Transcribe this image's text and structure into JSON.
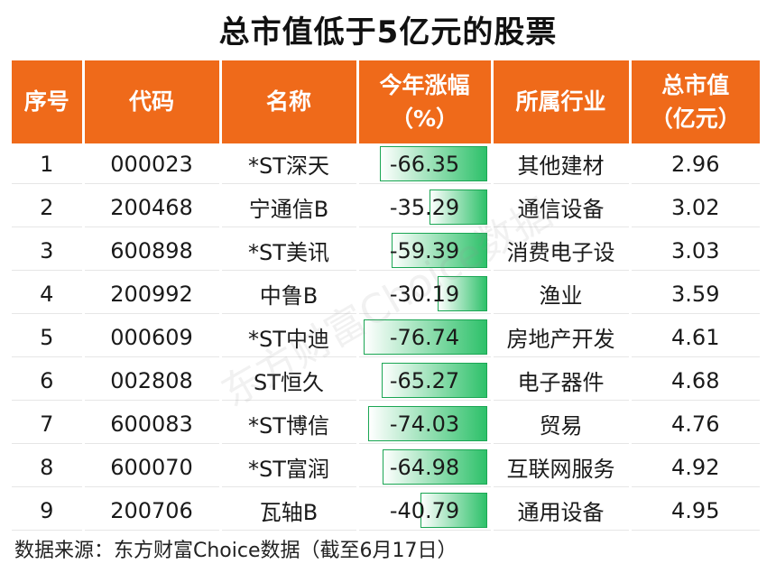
{
  "title": "总市值低于5亿元的股票",
  "headers": [
    "序号",
    "代码",
    "名称",
    "今年涨幅\n（%）",
    "所属行业",
    "总市值\n（亿元）"
  ],
  "rows": [
    {
      "no": "1",
      "code": "000023",
      "name": "*ST深天",
      "pct": "-66.35",
      "pct_value": -66.35,
      "industry": "其他建材",
      "mcap": "2.96"
    },
    {
      "no": "2",
      "code": "200468",
      "name": "宁通信B",
      "pct": "-35.29",
      "pct_value": -35.29,
      "industry": "通信设备",
      "mcap": "3.02"
    },
    {
      "no": "3",
      "code": "600898",
      "name": "*ST美讯",
      "pct": "-59.39",
      "pct_value": -59.39,
      "industry": "消费电子设",
      "mcap": "3.03"
    },
    {
      "no": "4",
      "code": "200992",
      "name": "中鲁B",
      "pct": "-30.19",
      "pct_value": -30.19,
      "industry": "渔业",
      "mcap": "3.59"
    },
    {
      "no": "5",
      "code": "000609",
      "name": "*ST中迪",
      "pct": "-76.74",
      "pct_value": -76.74,
      "industry": "房地产开发",
      "mcap": "4.61"
    },
    {
      "no": "6",
      "code": "002808",
      "name": "ST恒久",
      "pct": "-65.27",
      "pct_value": -65.27,
      "industry": "电子器件",
      "mcap": "4.68"
    },
    {
      "no": "7",
      "code": "600083",
      "name": "*ST博信",
      "pct": "-74.03",
      "pct_value": -74.03,
      "industry": "贸易",
      "mcap": "4.76"
    },
    {
      "no": "8",
      "code": "600070",
      "name": "*ST富润",
      "pct": "-64.98",
      "pct_value": -64.98,
      "industry": "互联网服务",
      "mcap": "4.92"
    },
    {
      "no": "9",
      "code": "200706",
      "name": "瓦轴B",
      "pct": "-40.79",
      "pct_value": -40.79,
      "industry": "通用设备",
      "mcap": "4.95"
    }
  ],
  "source": "数据来源：东方财富Choice数据（截至6月17日）",
  "watermark": "东方财富Choice数据",
  "colors": {
    "header_bg": "#ef6a1a",
    "bar": "#2ec16a"
  }
}
